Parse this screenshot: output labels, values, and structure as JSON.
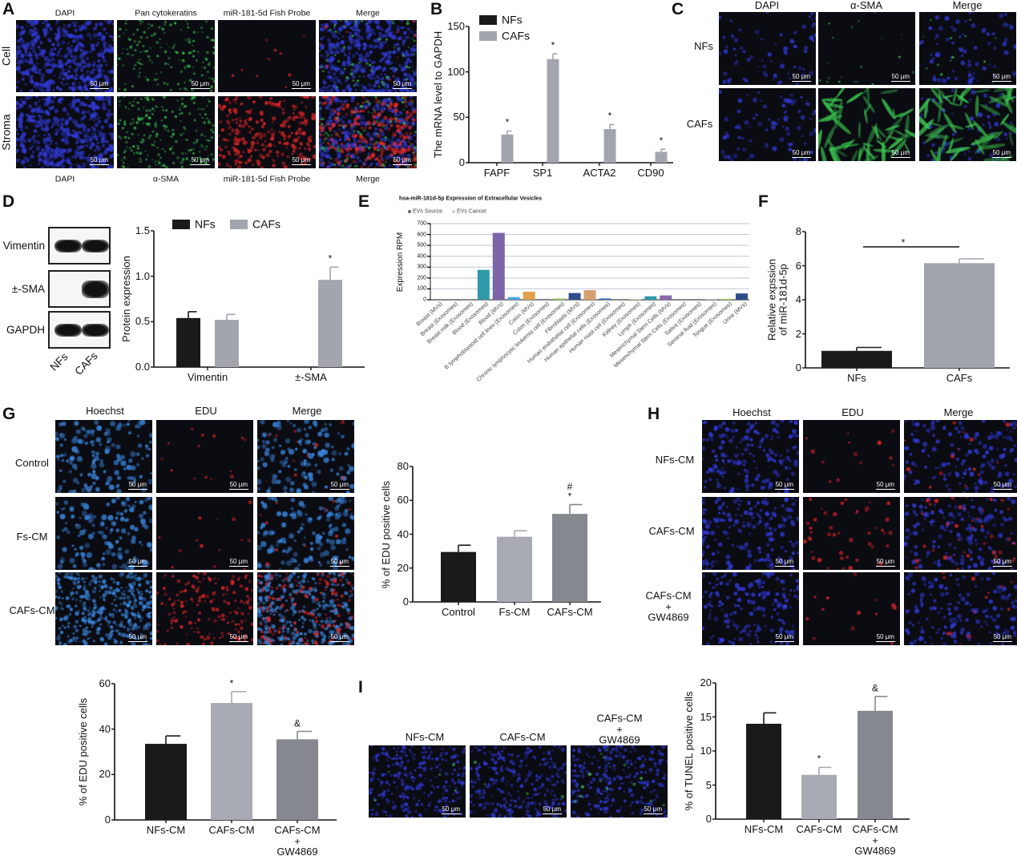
{
  "scale_bar": "50 μm",
  "panels": {
    "A": {
      "letter": "A",
      "top_labels": [
        "DAPI",
        "Pan cytokeratins",
        "miR-181-5d Fish Probe",
        "Merge"
      ],
      "bottom_labels": [
        "DAPI",
        "α-SMA",
        "miR-181-5d Fish Probe",
        "Merge"
      ],
      "row_labels": [
        "Cell",
        "Stroma"
      ]
    },
    "B": {
      "letter": "B"
    },
    "C": {
      "letter": "C",
      "top_labels": [
        "DAPI",
        "α-SMA",
        "Merge"
      ],
      "row_labels": [
        "NFs",
        "CAFs"
      ]
    },
    "D": {
      "letter": "D",
      "blot_labels": [
        "Vimentin",
        "±-SMA",
        "GAPDH"
      ],
      "lane_labels": [
        "NFs",
        "CAFs"
      ]
    },
    "E": {
      "letter": "E"
    },
    "F": {
      "letter": "F"
    },
    "G": {
      "letter": "G",
      "top_labels": [
        "Hoechst",
        "EDU",
        "Merge"
      ],
      "row_labels": [
        "Control",
        "Fs-CM",
        "CAFs-CM"
      ]
    },
    "H": {
      "letter": "H",
      "top_labels": [
        "Hoechst",
        "EDU",
        "Merge"
      ],
      "row_labels": [
        "NFs-CM",
        "CAFs-CM",
        "CAFs-CM\n+\nGW4869"
      ]
    },
    "I": {
      "letter": "I",
      "top_labels": [
        "NFs-CM",
        "CAFs-CM",
        "CAFs-CM\n+\nGW4869"
      ]
    }
  },
  "chart_data": [
    {
      "panel": "B",
      "type": "bar",
      "categories": [
        "FAPF",
        "SP1",
        "ACTA2",
        "CD90"
      ],
      "series": [
        {
          "name": "NFs",
          "color": "#1a1a1a",
          "values": [
            0.5,
            0.5,
            0.5,
            0.5
          ],
          "errors": [
            0,
            0,
            0,
            0
          ],
          "marks": [
            "",
            "",
            "",
            ""
          ]
        },
        {
          "name": "CAFs",
          "color": "#a3a5ae",
          "values": [
            31,
            114,
            37,
            12
          ],
          "errors": [
            4,
            6,
            5,
            3
          ],
          "marks": [
            "*",
            "*",
            "*",
            "*"
          ]
        }
      ],
      "ylabel": "The mRNA level to GAPDH",
      "ylim": [
        0,
        150
      ],
      "yticks": [
        "0",
        "50",
        "100",
        "150"
      ],
      "legend": "top-left"
    },
    {
      "panel": "D",
      "type": "bar",
      "categories": [
        "Vimentin",
        "±-SMA"
      ],
      "series": [
        {
          "name": "NFs",
          "color": "#1a1a1a",
          "values": [
            0.54,
            0
          ],
          "errors": [
            0.07,
            0
          ],
          "marks": [
            "",
            ""
          ]
        },
        {
          "name": "CAFs",
          "color": "#a3a5ae",
          "values": [
            0.52,
            0.96
          ],
          "errors": [
            0.06,
            0.14
          ],
          "marks": [
            "",
            "*"
          ]
        }
      ],
      "ylabel": "Protein expression",
      "ylim": [
        0,
        1.5
      ],
      "yticks": [
        "0.0",
        "0.5",
        "1.0",
        "1.5"
      ],
      "legend": "top"
    },
    {
      "panel": "E",
      "type": "bar",
      "title": "hsa-miR-181d-5p Expression of Extracellular Vesicles",
      "legend_entries": [
        "EVs Source",
        "EVs Cancer"
      ],
      "categories": [
        "Breast (MVs)",
        "Breast (Exosomes)",
        "Breast milk (Exosomes)",
        "Blood (Exosomes)",
        "Blood (MVs)",
        "B lymphoblastoid cell lines (Exosomes)",
        "Colon (MVs)",
        "Colon (Exosomes)",
        "Chronic lymphocytic leukemia cell (Exosomes)",
        "Fibroblasts (MVs)",
        "Human endothelial cell (Exosomes)",
        "Human epithelial cells (Exosomes)",
        "Human mast cell (Exosomes)",
        "Kidney (Exosomes)",
        "Lymph (Exosomes)",
        "Mesenchymal Stem Cells (MVs)",
        "Mesenchymal Stem Cells (Exosomes)",
        "Saliva (Exosomes)",
        "Seminal fluid (Exosomes)",
        "Tongue (Exosomes)",
        "Urine (MVs)"
      ],
      "series": [
        {
          "values": [
            0,
            0,
            0,
            275,
            615,
            25,
            75,
            8,
            12,
            62,
            88,
            12,
            0,
            5,
            32,
            40,
            0,
            0,
            3,
            8,
            58
          ],
          "colors": [
            "#2e9aa8",
            "#7b64a8",
            "#2e9aa8",
            "#2e9aa8",
            "#7b64a8",
            "#4ea6dc",
            "#e0a04a",
            "#8a7aa8",
            "#9ac45a",
            "#2e4c8c",
            "#d4a070",
            "#3a6cc0",
            "#999999",
            "#b6c86a",
            "#2e9aa8",
            "#8a6ab0",
            "#999999",
            "#999999",
            "#8a8aa8",
            "#9ac45a",
            "#2e4c8c"
          ]
        }
      ],
      "ylabel": "Expression RPM",
      "ylim": [
        0,
        700
      ],
      "yticks": [
        "0",
        "100",
        "200",
        "300",
        "400",
        "500",
        "600",
        "700"
      ],
      "grid": true
    },
    {
      "panel": "F",
      "type": "bar",
      "categories": [
        "NFs",
        "CAFs"
      ],
      "series": [
        {
          "colors": [
            "#1a1a1a",
            "#a3a5ae"
          ],
          "values": [
            1.0,
            6.15
          ],
          "errors": [
            0.2,
            0.25
          ],
          "marks": [
            "",
            ""
          ]
        }
      ],
      "bracket": "*",
      "ylabel": "Relative expssion\nof miR-181d-5p",
      "ylim": [
        0,
        8
      ],
      "yticks": [
        "0",
        "2",
        "4",
        "6",
        "8"
      ]
    },
    {
      "panel": "G",
      "type": "bar",
      "categories": [
        "Control",
        "Fs-CM",
        "CAFs-CM"
      ],
      "series": [
        {
          "colors": [
            "#1a1a1a",
            "#a8aab4",
            "#86888f"
          ],
          "values": [
            29.5,
            38.5,
            52
          ],
          "errors": [
            4,
            3.5,
            5.5
          ],
          "marks": [
            "",
            "",
            "#\n*"
          ]
        }
      ],
      "ylabel": "% of EDU positive cells",
      "ylim": [
        0,
        80
      ],
      "yticks": [
        "0",
        "20",
        "40",
        "60",
        "80"
      ]
    },
    {
      "panel": "H",
      "type": "bar",
      "categories": [
        "NFs-CM",
        "CAFs-CM",
        "CAFs-CM\n+\nGW4869"
      ],
      "series": [
        {
          "colors": [
            "#1a1a1a",
            "#a8aab4",
            "#86888f"
          ],
          "values": [
            33.5,
            51.5,
            35.5
          ],
          "errors": [
            3.5,
            5,
            3.5
          ],
          "marks": [
            "",
            "*",
            "&"
          ]
        }
      ],
      "ylabel": "% of EDU positive cells",
      "ylim": [
        0,
        60
      ],
      "yticks": [
        "0",
        "20",
        "40",
        "60"
      ]
    },
    {
      "panel": "I",
      "type": "bar",
      "categories": [
        "NFs-CM",
        "CAFs-CM",
        "CAFs-CM\n+\nGW4869"
      ],
      "series": [
        {
          "colors": [
            "#1a1a1a",
            "#a8aab4",
            "#86888f"
          ],
          "values": [
            14,
            6.5,
            15.9
          ],
          "errors": [
            1.6,
            1.1,
            2.1
          ],
          "marks": [
            "",
            "*",
            "&"
          ]
        }
      ],
      "ylabel": "% of TUNEL positive cells",
      "ylim": [
        0,
        20
      ],
      "yticks": [
        "0",
        "5",
        "10",
        "15",
        "20"
      ]
    }
  ]
}
